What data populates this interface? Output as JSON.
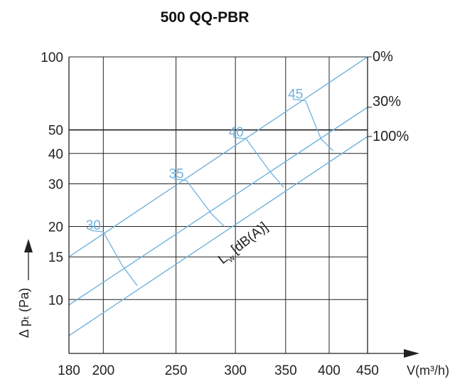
{
  "chart_data": {
    "type": "line",
    "title": "500 QQ-PBR",
    "xlabel": "V(m³/h)",
    "ylabel": "Δ pₜ (Pa)",
    "x_scale": "log",
    "y_scale": "log",
    "xlim": [
      180,
      450
    ],
    "ylim": [
      6,
      100
    ],
    "x_ticks": [
      180,
      200,
      250,
      300,
      350,
      400,
      450
    ],
    "y_ticks": [
      10,
      15,
      20,
      30,
      40,
      50,
      100
    ],
    "grid": true,
    "series": [
      {
        "name": "0%",
        "x": [
          180,
          450
        ],
        "y": [
          15,
          100
        ]
      },
      {
        "name": "30%",
        "x": [
          180,
          450
        ],
        "y": [
          9.5,
          62
        ]
      },
      {
        "name": "100%",
        "x": [
          180,
          450
        ],
        "y": [
          7.1,
          47
        ]
      }
    ],
    "sound_power_label": "L",
    "sound_power_sub": "w",
    "sound_power_unit": "[dB(A)]",
    "sound_levels": [
      {
        "label": "30",
        "points": [
          [
            200,
            19
          ],
          [
            212,
            13.8
          ],
          [
            222,
            11.4
          ]
        ]
      },
      {
        "label": "35",
        "points": [
          [
            258,
            31
          ],
          [
            279,
            22.5
          ],
          [
            290,
            20
          ]
        ]
      },
      {
        "label": "40",
        "points": [
          [
            310,
            46
          ],
          [
            334,
            33.5
          ],
          [
            348,
            29
          ]
        ]
      },
      {
        "label": "45",
        "points": [
          [
            372,
            66
          ],
          [
            390,
            46
          ],
          [
            405,
            41
          ]
        ]
      }
    ]
  },
  "colors": {
    "series": "#6fb2dd",
    "grid": "#222222",
    "axis": "#222222",
    "sound_label": "#6fb2dd"
  }
}
